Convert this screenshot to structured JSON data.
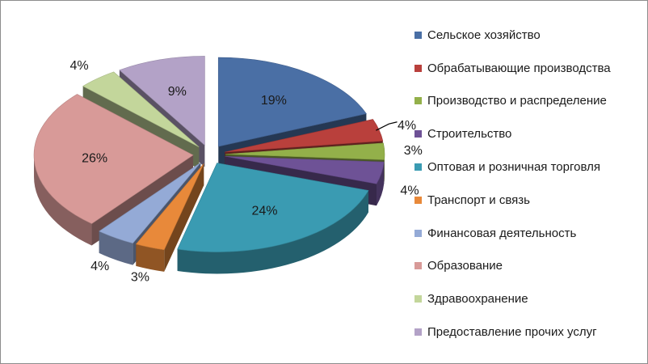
{
  "chart_data": {
    "type": "pie",
    "style": "3d-exploded",
    "legend_position": "right",
    "slices": [
      {
        "label": "Сельское хозяйство",
        "value": 19,
        "display": "19%",
        "color": "#4a6fa5"
      },
      {
        "label": "Обрабатывающие производства",
        "value": 4,
        "display": "4%",
        "color": "#b9403c"
      },
      {
        "label": "Производство и распределение",
        "value": 3,
        "display": "3%",
        "color": "#93b04a"
      },
      {
        "label": "Строительство",
        "value": 4,
        "display": "4%",
        "color": "#6e5296"
      },
      {
        "label": "Оптовая и розничная торговля",
        "value": 24,
        "display": "24%",
        "color": "#3a9bb2"
      },
      {
        "label": "Транспорт и связь",
        "value": 3,
        "display": "3%",
        "color": "#e8893a"
      },
      {
        "label": "Финансовая деятельность",
        "value": 4,
        "display": "4%",
        "color": "#94aad6"
      },
      {
        "label": "Образование",
        "value": 26,
        "display": "26%",
        "color": "#d89a98"
      },
      {
        "label": "Здравоохранение",
        "value": 4,
        "display": "4%",
        "color": "#c3d69b"
      },
      {
        "label": "Предоставление прочих услуг",
        "value": 9,
        "display": "9%",
        "color": "#b3a2c7"
      }
    ]
  },
  "legend": {
    "items": [
      "Сельское хозяйство",
      "Обрабатывающие производства",
      "Производство и распределение",
      "Строительство",
      "Оптовая и розничная торговля",
      "Транспорт и связь",
      "Финансовая деятельность",
      "Образование",
      "Здравоохранение",
      "Предоставление прочих услуг"
    ],
    "colors": [
      "#4a6fa5",
      "#b9403c",
      "#93b04a",
      "#6e5296",
      "#3a9bb2",
      "#e8893a",
      "#94aad6",
      "#d89a98",
      "#c3d69b",
      "#b3a2c7"
    ]
  }
}
